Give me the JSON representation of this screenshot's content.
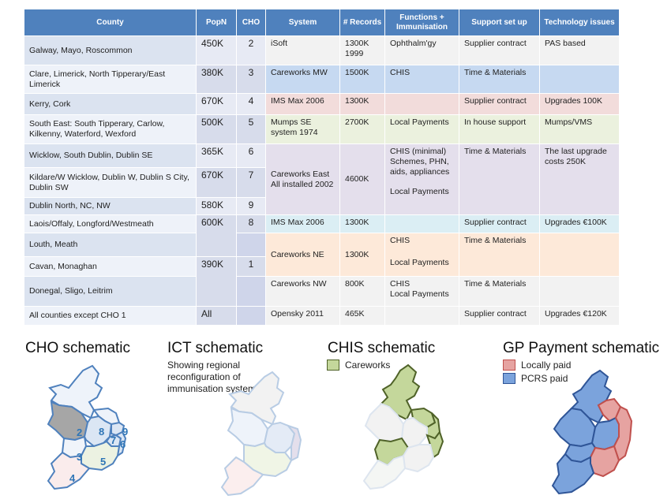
{
  "table": {
    "headers": [
      "County",
      "PopN",
      "CHO",
      "System",
      "# Records",
      "Functions + Immunisation",
      "Support set up",
      "Technology issues"
    ],
    "rows": [
      {
        "county": "Galway, Mayo, Roscommon",
        "popn": "450K",
        "cho": "2",
        "system": "iSoft",
        "records_a": "1300K",
        "records_b": "1999",
        "functions": "Ophthalm'gy",
        "support": "Supplier contract",
        "tech": "PAS based"
      },
      {
        "county": "Clare, Limerick, North Tipperary/East Limerick",
        "popn": "380K",
        "cho": "3",
        "system": "Careworks MW",
        "records": "1500K",
        "functions": "CHIS",
        "support": "Time & Materials",
        "tech": ""
      },
      {
        "county": "Kerry, Cork",
        "popn": "670K",
        "cho": "4",
        "system": "IMS Max 2006",
        "records": "1300K",
        "functions": "",
        "support": "Supplier contract",
        "tech": "Upgrades 100K"
      },
      {
        "county": "South East: South Tipperary, Carlow, Kilkenny, Waterford, Wexford",
        "popn": "500K",
        "cho": "5",
        "system": "Mumps SE system  1974",
        "records": "2700K",
        "functions": "Local Payments",
        "support": "In house support",
        "tech": "Mumps/VMS"
      },
      {
        "county": "Wicklow, South Dublin, Dublin SE",
        "popn": "365K",
        "cho": "6",
        "system": "Careworks East All installed 2002",
        "records": "4600K",
        "functions_a": "CHIS (minimal) Schemes, PHN, aids, appliances",
        "functions_b": "Local Payments",
        "support": "Time & Materials",
        "tech": "The last upgrade costs 250K"
      },
      {
        "county": "Kildare/W Wicklow, Dublin W, Dublin S City, Dublin SW",
        "popn": "670K",
        "cho": "7"
      },
      {
        "county": "Dublin North, NC, NW",
        "popn": "580K",
        "cho": "9"
      },
      {
        "county": "Laois/Offaly, Longford/Westmeath",
        "popn": "600K",
        "cho": "8",
        "system": "IMS Max  2006",
        "records": "1300K",
        "functions": "",
        "support": "Supplier contract",
        "tech": "Upgrades €100K"
      },
      {
        "county": "Louth, Meath",
        "system": "Careworks NE",
        "records": "1300K",
        "functions_a": "CHIS",
        "functions_b": "Local Payments",
        "support": "Time & Materials",
        "tech": ""
      },
      {
        "county": "Cavan, Monaghan",
        "popn": "390K",
        "cho": "1"
      },
      {
        "county": "Donegal, Sligo, Leitrim",
        "system": "Careworks NW",
        "records": "800K",
        "functions_a": "CHIS",
        "functions_b": "Local Payments",
        "support": "Time & Materials",
        "tech": ""
      },
      {
        "county": "All counties except CHO 1",
        "popn": "All",
        "cho": "",
        "system": "Opensky 2011",
        "records": "465K",
        "functions": "",
        "support": "Supplier contract",
        "tech": "Upgrades €120K"
      }
    ]
  },
  "schematics": {
    "cho": {
      "title": "CHO schematic",
      "labels": [
        "2",
        "8",
        "9",
        "7",
        "6",
        "3",
        "5",
        "4"
      ]
    },
    "ict": {
      "title": "ICT schematic",
      "subtitle": "Showing regional reconfiguration of immunisation systems"
    },
    "chis": {
      "title": "CHIS schematic",
      "legend": [
        {
          "label": "Careworks",
          "color": "#c4d79b",
          "border": "#4f6228"
        }
      ]
    },
    "gp": {
      "title": "GP Payment schematic",
      "legend": [
        {
          "label": "Locally paid",
          "color": "#e6a3a1",
          "border": "#c0504d"
        },
        {
          "label": "PCRS paid",
          "color": "#7ba3dc",
          "border": "#2f5597"
        }
      ]
    }
  }
}
